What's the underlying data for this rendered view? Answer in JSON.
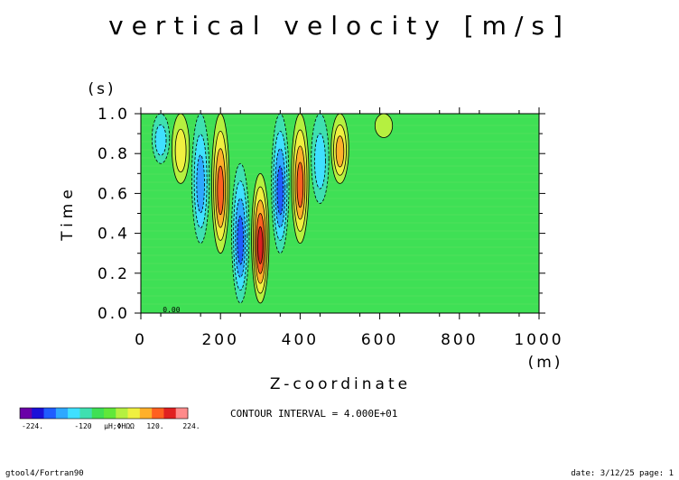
{
  "chart_data": {
    "type": "heatmap",
    "title": "vertical velocity [m/s]",
    "xlabel": "Z-coordinate",
    "xunit": "(m)",
    "ylabel": "Time",
    "yunit": "(s)",
    "xlim": [
      0,
      1000
    ],
    "ylim": [
      0.0,
      1.0
    ],
    "xticks": [
      "0",
      "200",
      "400",
      "600",
      "800",
      "1000"
    ],
    "yticks": [
      "0.0",
      "0.2",
      "0.4",
      "0.6",
      "0.8",
      "1.0"
    ],
    "contour_interval_text": "CONTOUR INTERVAL = 4.000E+01",
    "contour_label": "0.00",
    "colorbar_labels": [
      "-224.",
      "-120",
      "μH;ΦHΩΩ",
      "120.",
      "224."
    ],
    "colorbar_colors": [
      "#6a00a8",
      "#1a10d8",
      "#1f5cff",
      "#2ea8ff",
      "#3fe0ff",
      "#3fe0b0",
      "#3fe055",
      "#60e83a",
      "#b5f040",
      "#f0f040",
      "#ffb02a",
      "#ff6020",
      "#e02020",
      "#ff8a8a"
    ],
    "field_features": [
      {
        "z": 50,
        "t_range": [
          0.75,
          1.0
        ],
        "sign": -1,
        "level": 2
      },
      {
        "z": 100,
        "t_range": [
          0.65,
          1.0
        ],
        "sign": 1,
        "level": 2
      },
      {
        "z": 150,
        "t_range": [
          0.35,
          1.0
        ],
        "sign": -1,
        "level": 3
      },
      {
        "z": 200,
        "t_range": [
          0.3,
          1.0
        ],
        "sign": 1,
        "level": 4
      },
      {
        "z": 250,
        "t_range": [
          0.05,
          0.75
        ],
        "sign": -1,
        "level": 4
      },
      {
        "z": 300,
        "t_range": [
          0.05,
          0.7
        ],
        "sign": 1,
        "level": 5
      },
      {
        "z": 350,
        "t_range": [
          0.3,
          1.0
        ],
        "sign": -1,
        "level": 4
      },
      {
        "z": 400,
        "t_range": [
          0.35,
          1.0
        ],
        "sign": 1,
        "level": 4
      },
      {
        "z": 450,
        "t_range": [
          0.55,
          1.0
        ],
        "sign": -1,
        "level": 2
      },
      {
        "z": 500,
        "t_range": [
          0.65,
          1.0
        ],
        "sign": 1,
        "level": 3
      },
      {
        "z": 610,
        "t_range": [
          0.88,
          1.0
        ],
        "sign": 1,
        "level": 1
      }
    ]
  },
  "footer": {
    "left": "gtool4/Fortran90",
    "right": "date: 3/12/25 page: 1"
  }
}
